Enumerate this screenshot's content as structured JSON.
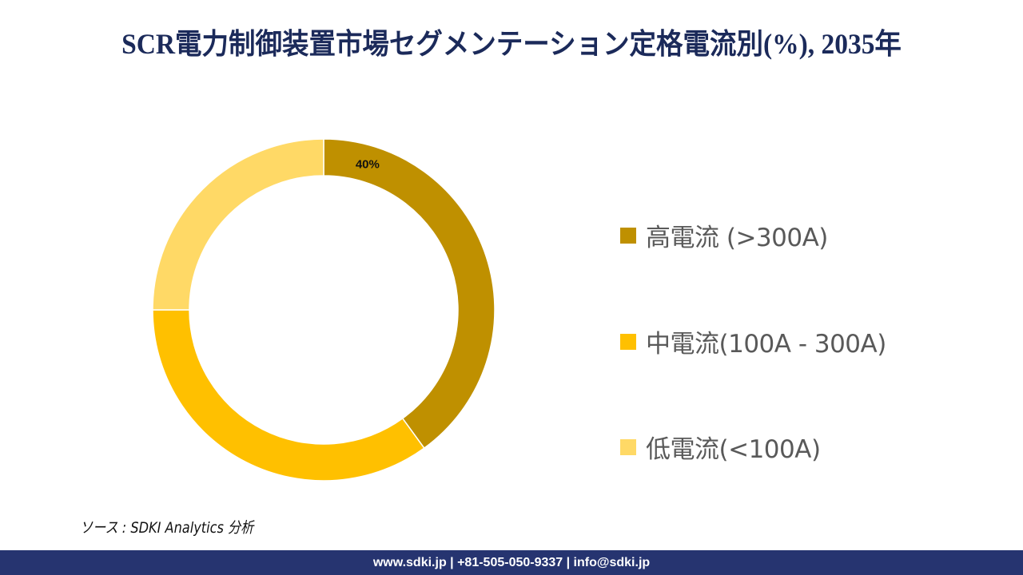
{
  "header": {
    "title": "SCR電力制御装置市場セグメンテーション定格電流別(%), 2035年"
  },
  "legend": {
    "items": [
      {
        "label": "高電流 (>300A)",
        "color": "#bf9000"
      },
      {
        "label": "中電流(100A - 300A)",
        "color": "#ffc000"
      },
      {
        "label": "低電流(<100A)",
        "color": "#ffd966"
      }
    ]
  },
  "source": {
    "text": "ソース : SDKI Analytics 分析"
  },
  "footer": {
    "text": "www.sdki.jp | +81-505-050-9337 | info@sdki.jp"
  },
  "chart_data": {
    "type": "pie",
    "subtype": "donut",
    "title": "SCR電力制御装置市場セグメンテーション定格電流別(%), 2035年",
    "categories": [
      "高電流 (>300A)",
      "中電流(100A - 300A)",
      "低電流(<100A)"
    ],
    "values": [
      40,
      35,
      25
    ],
    "colors": [
      "#bf9000",
      "#ffc000",
      "#ffd966"
    ],
    "data_labels": [
      "40%",
      "",
      ""
    ],
    "legend_position": "right",
    "start_angle": 0,
    "direction": "clockwise"
  }
}
